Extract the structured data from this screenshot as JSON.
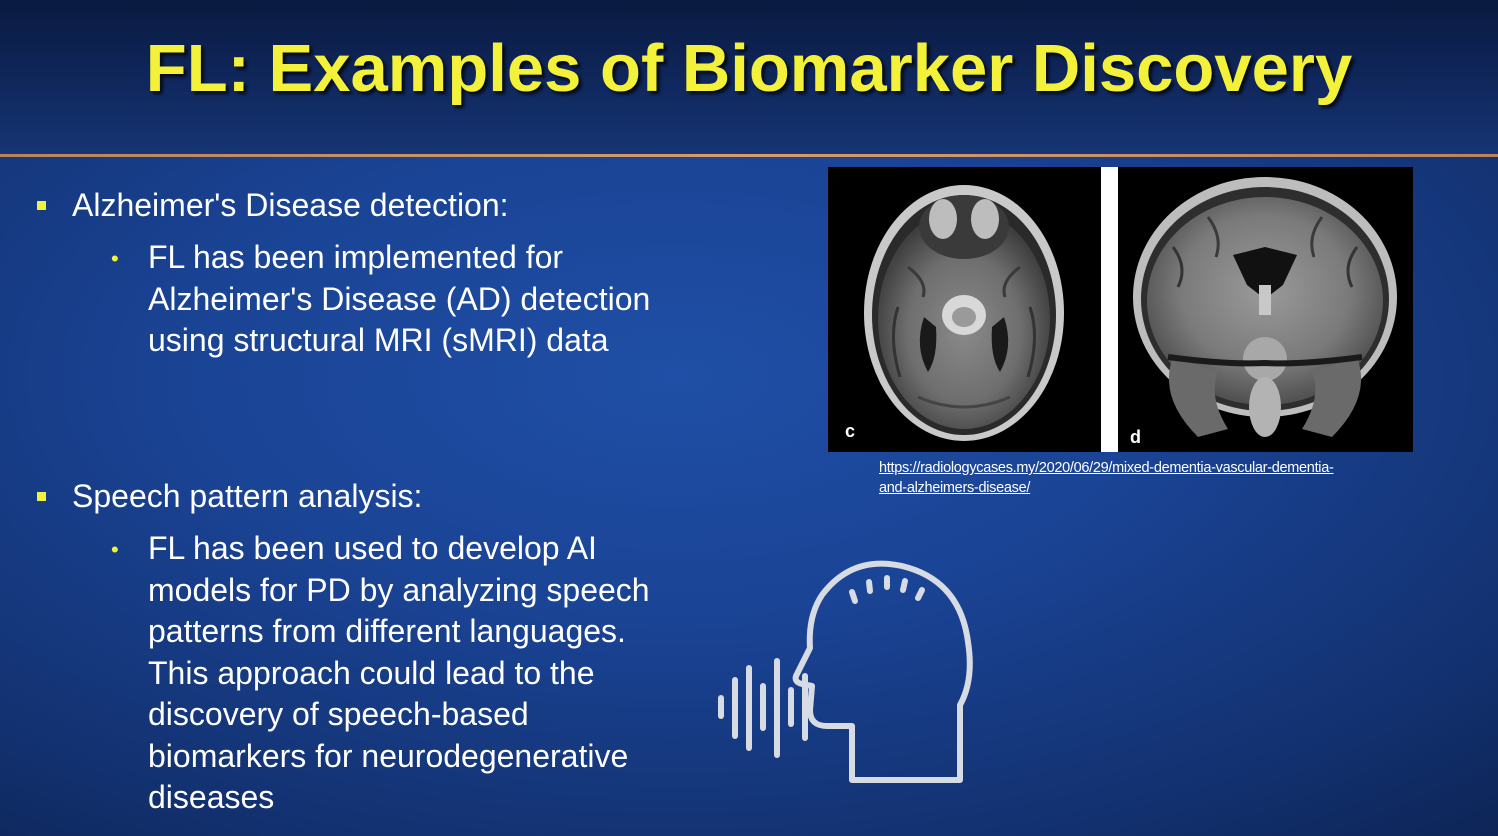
{
  "title": "FL: Examples of Biomarker Discovery",
  "bullets": [
    {
      "text": "Alzheimer's Disease detection:",
      "sub": [
        "FL has been implemented for",
        "Alzheimer's Disease (AD) detection",
        "using structural MRI (sMRI) data"
      ]
    },
    {
      "text": "Speech pattern analysis:",
      "sub": [
        "FL has been used to develop AI",
        "models for PD by analyzing speech",
        "patterns from different languages.",
        "This approach could lead to the",
        "discovery of speech-based",
        "biomarkers for neurodegenerative",
        "diseases"
      ]
    }
  ],
  "image": {
    "panel_left_label": "c",
    "panel_right_label": "d",
    "credit_line1": "https://radiologycases.my/2020/06/29/mixed-dementia-vascular-dementia-",
    "credit_line2": "and-alzheimers-disease/"
  },
  "icons": {
    "bullet_square": "square-bullet-icon",
    "bullet_dot": "dot-bullet-icon",
    "speech": "speaking-head-icon"
  },
  "colors": {
    "title": "#f4f13a",
    "accent_line": "#d99c6a",
    "background": "#1a4394"
  }
}
